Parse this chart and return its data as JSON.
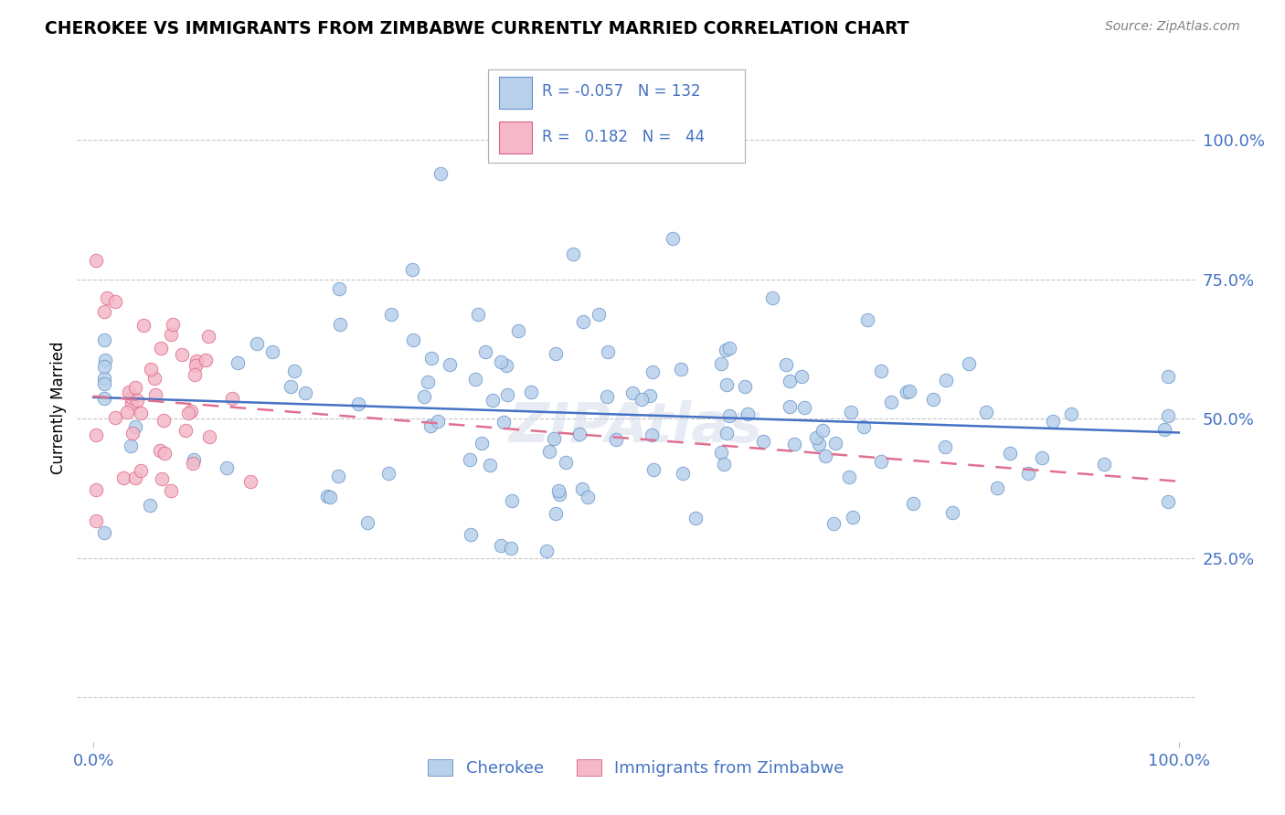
{
  "title": "CHEROKEE VS IMMIGRANTS FROM ZIMBABWE CURRENTLY MARRIED CORRELATION CHART",
  "source": "Source: ZipAtlas.com",
  "ylabel": "Currently Married",
  "legend_label1": "Cherokee",
  "legend_label2": "Immigrants from Zimbabwe",
  "r1": -0.057,
  "n1": 132,
  "r2": 0.182,
  "n2": 44,
  "color_blue_fill": "#b8d0ea",
  "color_blue_edge": "#6090c8",
  "color_pink_fill": "#f4b8c8",
  "color_pink_edge": "#d86080",
  "color_line_blue": "#4472c4",
  "color_line_pink": "#e07090",
  "color_text": "#4472c4",
  "color_grid": "#c8c8c8",
  "color_title": "#000000",
  "color_source": "#808080",
  "xlim": [
    0.0,
    1.0
  ],
  "ylim_data": [
    0.0,
    1.0
  ],
  "ytick_vals": [
    0.0,
    0.25,
    0.5,
    0.75,
    1.0
  ],
  "ytick_labels": [
    "",
    "25.0%",
    "50.0%",
    "75.0%",
    "100.0%"
  ],
  "xtick_vals": [
    0.0,
    1.0
  ],
  "xtick_labels": [
    "0.0%",
    "100.0%"
  ]
}
